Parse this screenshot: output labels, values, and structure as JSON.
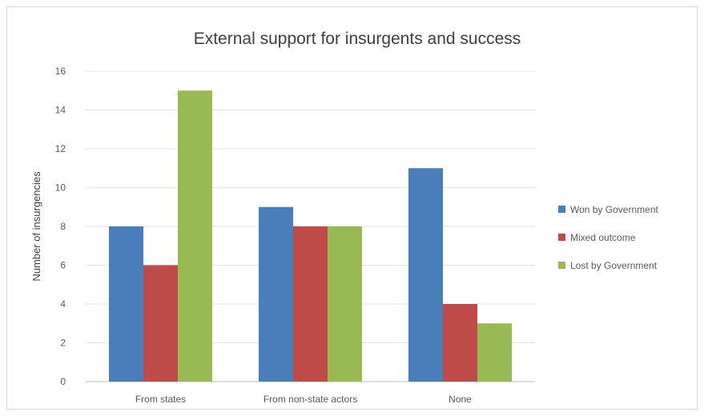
{
  "chart_data": {
    "type": "bar",
    "title": "External support for insurgents and success",
    "xlabel": "",
    "ylabel": "Number of insurgencies",
    "categories": [
      "From states",
      "From non-state actors",
      "None"
    ],
    "ylim": [
      0,
      16
    ],
    "yticks": [
      0,
      2,
      4,
      6,
      8,
      10,
      12,
      14,
      16
    ],
    "grid": true,
    "legend_position": "right",
    "series": [
      {
        "name": "Won by Government",
        "color": "#4a7ebb",
        "values": [
          8,
          9,
          11
        ]
      },
      {
        "name": "Mixed outcome",
        "color": "#be4b48",
        "values": [
          6,
          8,
          4
        ]
      },
      {
        "name": "Lost by Government",
        "color": "#98b954",
        "values": [
          15,
          8,
          3
        ]
      }
    ]
  }
}
